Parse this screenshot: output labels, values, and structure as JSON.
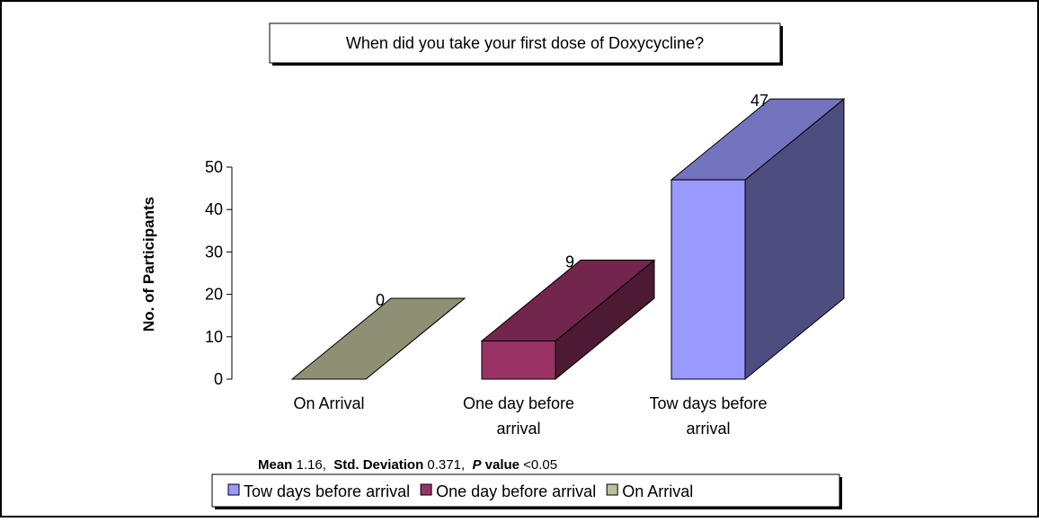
{
  "chart_data": {
    "type": "bar3d",
    "title": "When did you take your first dose of Doxycycline?",
    "y_label": "No. of Participants",
    "categories": [
      "On Arrival",
      "One day before arrival",
      "Tow days before arrival"
    ],
    "values": [
      0,
      9,
      47
    ],
    "colors": [
      "#bfbf9a",
      "#993366",
      "#9999ff"
    ],
    "ylim": [
      0,
      50
    ],
    "yticks": [
      0,
      10,
      20,
      30,
      40,
      50
    ],
    "annotation": [
      "Mean",
      " 1.16,  ",
      "Std. Deviation",
      " 0.371,  ",
      "P",
      " value",
      " <0.05"
    ],
    "legend": "bottom"
  }
}
